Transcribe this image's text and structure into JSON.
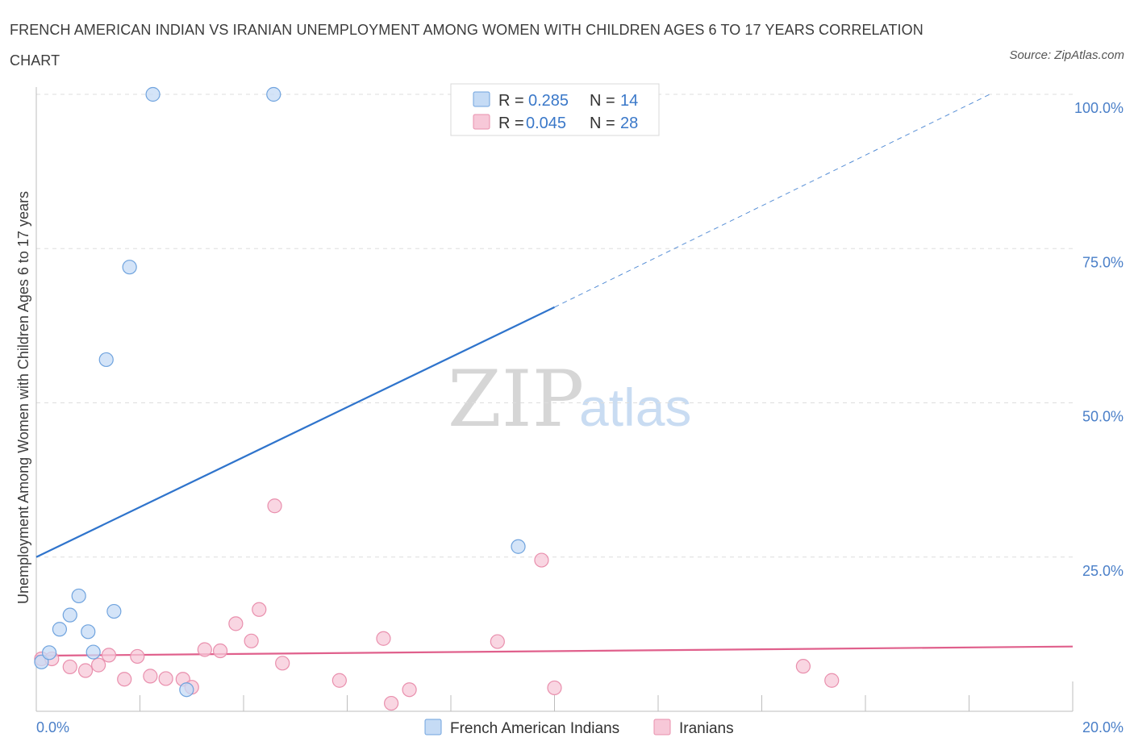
{
  "chart_data": {
    "type": "scatter",
    "title": "FRENCH AMERICAN INDIAN VS IRANIAN UNEMPLOYMENT AMONG WOMEN WITH CHILDREN AGES 6 TO 17 YEARS CORRELATION CHART",
    "source": "Source: ZipAtlas.com",
    "ylabel": "Unemployment Among Women with Children Ages 6 to 17 years",
    "xlim": [
      0,
      20
    ],
    "ylim": [
      0,
      100
    ],
    "x_tick_labels": [
      "0.0%",
      "20.0%"
    ],
    "y_ticks": [
      25,
      50,
      75,
      100
    ],
    "y_tick_labels": [
      "25.0%",
      "50.0%",
      "75.0%",
      "100.0%"
    ],
    "watermark": {
      "zip": "ZIP",
      "atlas": "atlas"
    },
    "series": [
      {
        "name": "French American Indians",
        "color": "#6fa3de",
        "fill": "#c5dbf5",
        "line_color": "#2f74cc",
        "legend": {
          "r_label": "R =",
          "r_value": "0.285",
          "n_label": "N =",
          "n_value": "14"
        },
        "trend": {
          "x0": 0,
          "y0": 25.0,
          "x1": 10.0,
          "y1": 65.5,
          "dash_x1": 18.4,
          "dash_y1": 100
        },
        "points": [
          {
            "x": 0.1,
            "y": 8.0
          },
          {
            "x": 0.25,
            "y": 9.5
          },
          {
            "x": 0.45,
            "y": 13.3
          },
          {
            "x": 0.65,
            "y": 15.6
          },
          {
            "x": 0.82,
            "y": 18.7
          },
          {
            "x": 1.0,
            "y": 12.9
          },
          {
            "x": 1.1,
            "y": 9.6
          },
          {
            "x": 1.35,
            "y": 57.0
          },
          {
            "x": 1.5,
            "y": 16.2
          },
          {
            "x": 1.8,
            "y": 72.0
          },
          {
            "x": 2.25,
            "y": 100.0
          },
          {
            "x": 2.9,
            "y": 3.5
          },
          {
            "x": 4.58,
            "y": 100.0
          },
          {
            "x": 9.3,
            "y": 26.7
          }
        ]
      },
      {
        "name": "Iranians",
        "color": "#e98fad",
        "fill": "#f7c8d8",
        "line_color": "#e0608c",
        "legend": {
          "r_label": "R =",
          "r_value": "0.045",
          "n_label": "N =",
          "n_value": "28"
        },
        "trend": {
          "x0": 0,
          "y0": 9.0,
          "x1": 20.0,
          "y1": 10.5
        },
        "points": [
          {
            "x": 0.1,
            "y": 8.5
          },
          {
            "x": 0.3,
            "y": 8.5
          },
          {
            "x": 0.65,
            "y": 7.2
          },
          {
            "x": 0.95,
            "y": 6.6
          },
          {
            "x": 1.2,
            "y": 7.5
          },
          {
            "x": 1.4,
            "y": 9.1
          },
          {
            "x": 1.7,
            "y": 5.2
          },
          {
            "x": 1.95,
            "y": 8.9
          },
          {
            "x": 2.2,
            "y": 5.7
          },
          {
            "x": 2.5,
            "y": 5.3
          },
          {
            "x": 2.83,
            "y": 5.2
          },
          {
            "x": 3.0,
            "y": 3.9
          },
          {
            "x": 3.25,
            "y": 10.0
          },
          {
            "x": 3.55,
            "y": 9.8
          },
          {
            "x": 3.85,
            "y": 14.2
          },
          {
            "x": 4.15,
            "y": 11.4
          },
          {
            "x": 4.3,
            "y": 16.5
          },
          {
            "x": 4.6,
            "y": 33.3
          },
          {
            "x": 4.75,
            "y": 7.8
          },
          {
            "x": 5.85,
            "y": 5.0
          },
          {
            "x": 6.7,
            "y": 11.8
          },
          {
            "x": 6.85,
            "y": 1.3
          },
          {
            "x": 7.2,
            "y": 3.5
          },
          {
            "x": 8.9,
            "y": 11.3
          },
          {
            "x": 9.75,
            "y": 24.5
          },
          {
            "x": 10.0,
            "y": 3.8
          },
          {
            "x": 14.8,
            "y": 7.3
          },
          {
            "x": 15.35,
            "y": 5.0
          }
        ]
      }
    ]
  }
}
